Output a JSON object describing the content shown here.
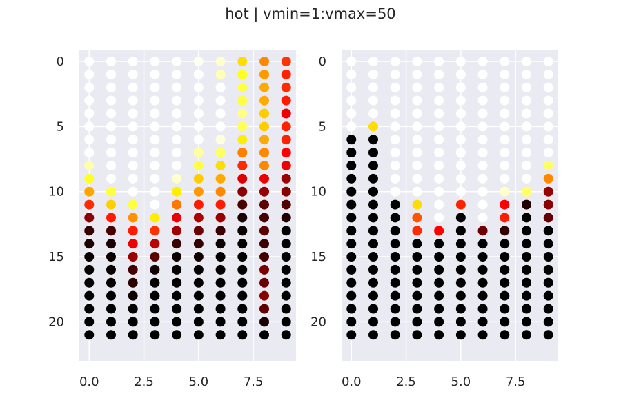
{
  "figure": {
    "title": "hot | vmin=1:vmax=50"
  },
  "colors": {
    "background": "#eaeaf2",
    "grid": "#ffffff",
    "text": "#262626"
  },
  "chart_data": [
    {
      "type": "scatter",
      "colormap": "hot",
      "vmin": 1,
      "vmax": 50,
      "y_inverted": true,
      "grid": true,
      "xlim": [
        -0.45,
        9.45
      ],
      "ylim": [
        23,
        -0.85
      ],
      "xticks": [
        0.0,
        2.5,
        5.0,
        7.5
      ],
      "xtick_labels": [
        "0.0",
        "2.5",
        "5.0",
        "7.5"
      ],
      "yticks": [
        0,
        5,
        10,
        15,
        20
      ],
      "ytick_labels": [
        "0",
        "5",
        "10",
        "15",
        "20"
      ],
      "grid_x": 10,
      "grid_y": 22,
      "colors": [
        [
          "#ffffff",
          "#ffffff",
          "#ffffff",
          "#ffffff",
          "#ffffff",
          "#ffffff",
          "#ffffff",
          "#ffffff",
          "#ffffff",
          "#ffffff",
          "#ffffff",
          "#ffffff",
          "#ffffff",
          "#ffffff",
          "#ffffff",
          "#ffffff",
          "#ffffff",
          "#ffffff",
          "#ffffff",
          "#ffffff",
          "#ffffff",
          "#ffffff"
        ],
        [
          "#ffffff",
          "#ffffff",
          "#ffffff",
          "#ffffff",
          "#ffffff",
          "#ffffff",
          "#ffffff",
          "#ffffff",
          "#ffffff",
          "#ffffff",
          "#ffffff",
          "#ffffff",
          "#ffffff",
          "#ffffff",
          "#ffffff",
          "#ffffff",
          "#ffffff",
          "#ffffff",
          "#ffffff",
          "#ffffff",
          "#ffffff",
          "#ffffff"
        ],
        [
          "#ffffff",
          "#ffffff",
          "#ffffff",
          "#ffffff",
          "#ffffff",
          "#ffffff",
          "#ffffff",
          "#ffffff",
          "#ffffff",
          "#ffffff",
          "#ffffff",
          "#ffffff",
          "#ffffff",
          "#ffffff",
          "#ffffff",
          "#ffffff",
          "#ffffff",
          "#ffffff",
          "#ffffff",
          "#ffffff",
          "#ffffff",
          "#ffffff"
        ],
        [
          "#ffffff",
          "#ffffff",
          "#ffffff",
          "#ffffff",
          "#ffffff",
          "#ffffff",
          "#ffffff",
          "#ffffff",
          "#ffffff",
          "#ffffff",
          "#ffffff",
          "#ffffff",
          "#ffffff",
          "#ffffff",
          "#ffffff",
          "#ffffff",
          "#ffffff",
          "#ffffff",
          "#ffffff",
          "#ffffff",
          "#ffffff",
          "#ffffff"
        ],
        [
          "#ffffff",
          "#ffffff",
          "#ffffff",
          "#ffffff",
          "#ffffff",
          "#ffffff",
          "#ffffff",
          "#ffffff",
          "#ffffff",
          "#ffffff",
          "#ffffff",
          "#ffffff",
          "#ffffff",
          "#ffffff",
          "#ffffff",
          "#ffffff",
          "#ffffff",
          "#ffffff",
          "#ffffff",
          "#ffffff",
          "#ffffff",
          "#ffffff"
        ],
        [
          "#ffffff",
          "#ffffff",
          "#ffffff",
          "#ffffff",
          "#ffffff",
          "#ffffff",
          "#ffffff",
          "#ffffff",
          "#ffffff",
          "#ffffff",
          "#ffffff",
          "#ffffff",
          "#ffffff",
          "#ffffff",
          "#ffffff",
          "#ffffff",
          "#ffffff",
          "#ffffff",
          "#ffffff",
          "#ffffff",
          "#ffffff",
          "#ffffff"
        ],
        [
          "#ffffff",
          "#ffffff",
          "#ffffff",
          "#ffffff",
          "#ffffff",
          "#ffffff",
          "#ffffff",
          "#ffffff",
          "#ffffff",
          "#ffffff",
          "#ffffff",
          "#ffffff",
          "#ffffff",
          "#ffffff",
          "#ffffff",
          "#ffffff",
          "#ffffff",
          "#ffffff",
          "#ffffff",
          "#ffffff",
          "#ffffff",
          "#ffffff"
        ],
        [
          "#ffffff",
          "#ffffff",
          "#ffffff",
          "#ffffff",
          "#ffffff",
          "#ffffff",
          "#ffffff",
          "#ffffff",
          "#ffffff",
          "#ffffff",
          "#ffffff",
          "#ffffff",
          "#ffffff",
          "#ffffff",
          "#ffffff",
          "#ffffff",
          "#ffffff",
          "#ffffff",
          "#ffffff",
          "#ffffff",
          "#ffffff",
          "#ffffff"
        ],
        [
          "#ffffff",
          "#ffffff",
          "#ffffff",
          "#ffffff",
          "#ffffff",
          "#ffffff",
          "#ffffff",
          "#ffffff",
          "#ffffff",
          "#ffffff",
          "#ffffff",
          "#ffffff",
          "#ffffff",
          "#ffffff",
          "#ffffff",
          "#ffffff",
          "#ffffff",
          "#ffffff",
          "#ffffff",
          "#ffffff",
          "#ffffff",
          "#ffffff"
        ],
        [
          "#ffffff",
          "#ffffff",
          "#ffffff",
          "#ffffff",
          "#ffffff",
          "#ffffff",
          "#ffffff",
          "#ffffff",
          "#ffffff",
          "#ffffff",
          "#ffffff",
          "#ffffff",
          "#ffffff",
          "#ffffff",
          "#ffffff",
          "#ffffff",
          "#ffffff",
          "#ffffff",
          "#ffffff",
          "#ffffff",
          "#ffffff",
          "#ffffff"
        ]
      ],
      "color_columns": [
        [
          "#ffffff",
          "#ffffff",
          "#ffffff",
          "#ffffff",
          "#ffffff",
          "#ffffff",
          "#ffffff",
          "#ffffff",
          "#ffffa8",
          "#ffff22",
          "#ffa500",
          "#ff2a00",
          "#8b0000",
          "#360000",
          "#1a0000",
          "#080000",
          "#050000",
          "#020000",
          "#000000",
          "#000000",
          "#000000",
          "#000000"
        ],
        [
          "#ffffff",
          "#ffffff",
          "#ffffff",
          "#ffffff",
          "#ffffff",
          "#ffffff",
          "#ffffff",
          "#ffffff",
          "#ffffff",
          "#ffffff",
          "#ffff40",
          "#ffd000",
          "#ff1a00",
          "#4a0000",
          "#1c0000",
          "#0a0000",
          "#050000",
          "#050000",
          "#000000",
          "#000000",
          "#000000",
          "#000000"
        ],
        [
          "#ffffff",
          "#ffffff",
          "#ffffff",
          "#ffffff",
          "#ffffff",
          "#ffffff",
          "#ffffff",
          "#ffffff",
          "#ffffff",
          "#ffffff",
          "#ffffff",
          "#ffff40",
          "#ff9000",
          "#ff1a00",
          "#ee0000",
          "#9a0000",
          "#440000",
          "#2a0000",
          "#100000",
          "#050000",
          "#000000",
          "#000000"
        ],
        [
          "#ffffff",
          "#ffffff",
          "#ffffff",
          "#ffffff",
          "#ffffff",
          "#ffffff",
          "#ffffff",
          "#ffffff",
          "#ffffff",
          "#ffffff",
          "#ffffff",
          "#ffffff",
          "#ffee00",
          "#ff3300",
          "#bb0000",
          "#5a0000",
          "#120000",
          "#050000",
          "#030000",
          "#000000",
          "#000000",
          "#000000"
        ],
        [
          "#ffffff",
          "#ffffff",
          "#ffffff",
          "#ffffff",
          "#ffffff",
          "#ffffff",
          "#ffffff",
          "#ffffff",
          "#ffffff",
          "#ffffd0",
          "#ffee00",
          "#ff7700",
          "#ee0000",
          "#a00000",
          "#380000",
          "#0c0000",
          "#050000",
          "#050000",
          "#000000",
          "#000000",
          "#000000",
          "#000000"
        ],
        [
          "#fffff0",
          "#ffffff",
          "#ffffff",
          "#ffffff",
          "#ffffff",
          "#ffffff",
          "#ffffff",
          "#ffffa0",
          "#ffff40",
          "#ffcc00",
          "#ff9900",
          "#ff1a00",
          "#ae0000",
          "#6a0000",
          "#340000",
          "#0e0000",
          "#050000",
          "#020000",
          "#000000",
          "#000000",
          "#000000",
          "#000000"
        ],
        [
          "#ffffcc",
          "#ffffbb",
          "#ffffff",
          "#ffffff",
          "#ffffff",
          "#ffffff",
          "#ffffdd",
          "#ffff66",
          "#ffdd00",
          "#ffaa00",
          "#ff8800",
          "#ff1a00",
          "#9a0000",
          "#3c0000",
          "#0e0000",
          "#050000",
          "#030000",
          "#000000",
          "#000000",
          "#000000",
          "#000000",
          "#000000"
        ],
        [
          "#ffdd00",
          "#ffff22",
          "#ffff44",
          "#ffff40",
          "#ffff88",
          "#ffff55",
          "#ffee00",
          "#ff8000",
          "#ff2a00",
          "#dd0000",
          "#8b0000",
          "#4a0000",
          "#1a0000",
          "#0a0000",
          "#040000",
          "#020000",
          "#000000",
          "#000000",
          "#000000",
          "#000000",
          "#000000",
          "#000000"
        ],
        [
          "#ff8800",
          "#ff9900",
          "#ffaa00",
          "#ffaa00",
          "#ffcc00",
          "#ffcc00",
          "#ffaa00",
          "#ff8800",
          "#ff8800",
          "#ee0000",
          "#990000",
          "#5e0000",
          "#450000",
          "#5a0000",
          "#3c0000",
          "#440000",
          "#7a0000",
          "#6a0000",
          "#880000",
          "#5e0000",
          "#1a0000",
          "#000000"
        ],
        [
          "#ff3300",
          "#ff2200",
          "#ff2a00",
          "#ff1a00",
          "#ee0000",
          "#ff2200",
          "#ff2200",
          "#ff0000",
          "#ee0000",
          "#990000",
          "#880000",
          "#550000",
          "#220000",
          "#000000",
          "#000000",
          "#000000",
          "#000000",
          "#000000",
          "#000000",
          "#000000",
          "#000000",
          "#000000"
        ]
      ]
    },
    {
      "type": "scatter",
      "colormap": "hot",
      "vmin": 1,
      "vmax": 50,
      "y_inverted": true,
      "grid": true,
      "xlim": [
        -0.45,
        9.45
      ],
      "ylim": [
        23,
        -0.85
      ],
      "xticks": [
        0.0,
        2.5,
        5.0,
        7.5
      ],
      "xtick_labels": [
        "0.0",
        "2.5",
        "5.0",
        "7.5"
      ],
      "yticks": [
        0,
        5,
        10,
        15,
        20
      ],
      "ytick_labels": [
        "0",
        "5",
        "10",
        "15",
        "20"
      ],
      "grid_x": 10,
      "grid_y": 22,
      "color_columns": [
        [
          "#ffffff",
          "#ffffff",
          "#ffffff",
          "#ffffff",
          "#ffffff",
          "#ffffff",
          "#000000",
          "#000000",
          "#000000",
          "#000000",
          "#000000",
          "#000000",
          "#000000",
          "#000000",
          "#000000",
          "#000000",
          "#000000",
          "#000000",
          "#000000",
          "#000000",
          "#000000",
          "#000000"
        ],
        [
          "#ffffff",
          "#ffffff",
          "#ffffff",
          "#ffffff",
          "#ffffff",
          "#ffdd00",
          "#000000",
          "#000000",
          "#000000",
          "#000000",
          "#000000",
          "#000000",
          "#000000",
          "#000000",
          "#000000",
          "#000000",
          "#000000",
          "#000000",
          "#000000",
          "#000000",
          "#000000",
          "#000000"
        ],
        [
          "#ffffff",
          "#ffffff",
          "#ffffff",
          "#ffffff",
          "#ffffff",
          "#ffffff",
          "#ffffff",
          "#ffffff",
          "#ffffff",
          "#ffffff",
          "#ffffff",
          "#000000",
          "#000000",
          "#000000",
          "#000000",
          "#000000",
          "#000000",
          "#000000",
          "#000000",
          "#000000",
          "#000000",
          "#000000"
        ],
        [
          "#ffffff",
          "#ffffff",
          "#ffffff",
          "#ffffff",
          "#ffffff",
          "#ffffff",
          "#ffffff",
          "#ffffff",
          "#ffffff",
          "#ffffff",
          "#ffffff",
          "#ffdd00",
          "#ff5500",
          "#ff2a00",
          "#000000",
          "#000000",
          "#000000",
          "#000000",
          "#000000",
          "#000000",
          "#000000",
          "#000000"
        ],
        [
          "#ffffff",
          "#ffffff",
          "#ffffff",
          "#ffffff",
          "#ffffff",
          "#ffffff",
          "#ffffff",
          "#ffffff",
          "#ffffff",
          "#ffffff",
          "#ffffff",
          "#ffffff",
          "#ffffff",
          "#ff0000",
          "#000000",
          "#000000",
          "#000000",
          "#000000",
          "#000000",
          "#000000",
          "#000000",
          "#000000"
        ],
        [
          "#ffffff",
          "#ffffff",
          "#ffffff",
          "#ffffff",
          "#ffffff",
          "#ffffff",
          "#ffffff",
          "#ffffff",
          "#ffffff",
          "#ffffff",
          "#ffffff",
          "#ff2200",
          "#000000",
          "#000000",
          "#000000",
          "#000000",
          "#000000",
          "#000000",
          "#000000",
          "#000000",
          "#000000",
          "#000000"
        ],
        [
          "#ffffff",
          "#ffffff",
          "#ffffff",
          "#ffffff",
          "#ffffff",
          "#ffffff",
          "#ffffff",
          "#ffffff",
          "#ffffff",
          "#ffffff",
          "#ffffff",
          "#ffffff",
          "#ffffff",
          "#6a0000",
          "#000000",
          "#000000",
          "#000000",
          "#000000",
          "#000000",
          "#000000",
          "#000000",
          "#000000"
        ],
        [
          "#ffffff",
          "#ffffff",
          "#ffffff",
          "#ffffff",
          "#ffffff",
          "#ffffff",
          "#ffffff",
          "#ffffff",
          "#ffffff",
          "#ffffff",
          "#ffffcc",
          "#ff0000",
          "#ff1a00",
          "#330000",
          "#000000",
          "#000000",
          "#000000",
          "#000000",
          "#000000",
          "#000000",
          "#000000",
          "#000000"
        ],
        [
          "#ffffff",
          "#ffffff",
          "#ffffff",
          "#ffffff",
          "#ffffff",
          "#ffffff",
          "#ffffff",
          "#ffffff",
          "#ffffff",
          "#ffffff",
          "#ffff66",
          "#220000",
          "#000000",
          "#000000",
          "#000000",
          "#000000",
          "#000000",
          "#000000",
          "#000000",
          "#000000",
          "#000000",
          "#000000"
        ],
        [
          "#ffffff",
          "#ffffff",
          "#ffffff",
          "#ffffff",
          "#ffffff",
          "#ffffff",
          "#ffffff",
          "#ffffff",
          "#ffff66",
          "#ff8800",
          "#990000",
          "#880000",
          "#660000",
          "#000000",
          "#000000",
          "#000000",
          "#000000",
          "#000000",
          "#000000",
          "#000000",
          "#000000",
          "#000000"
        ]
      ]
    }
  ]
}
